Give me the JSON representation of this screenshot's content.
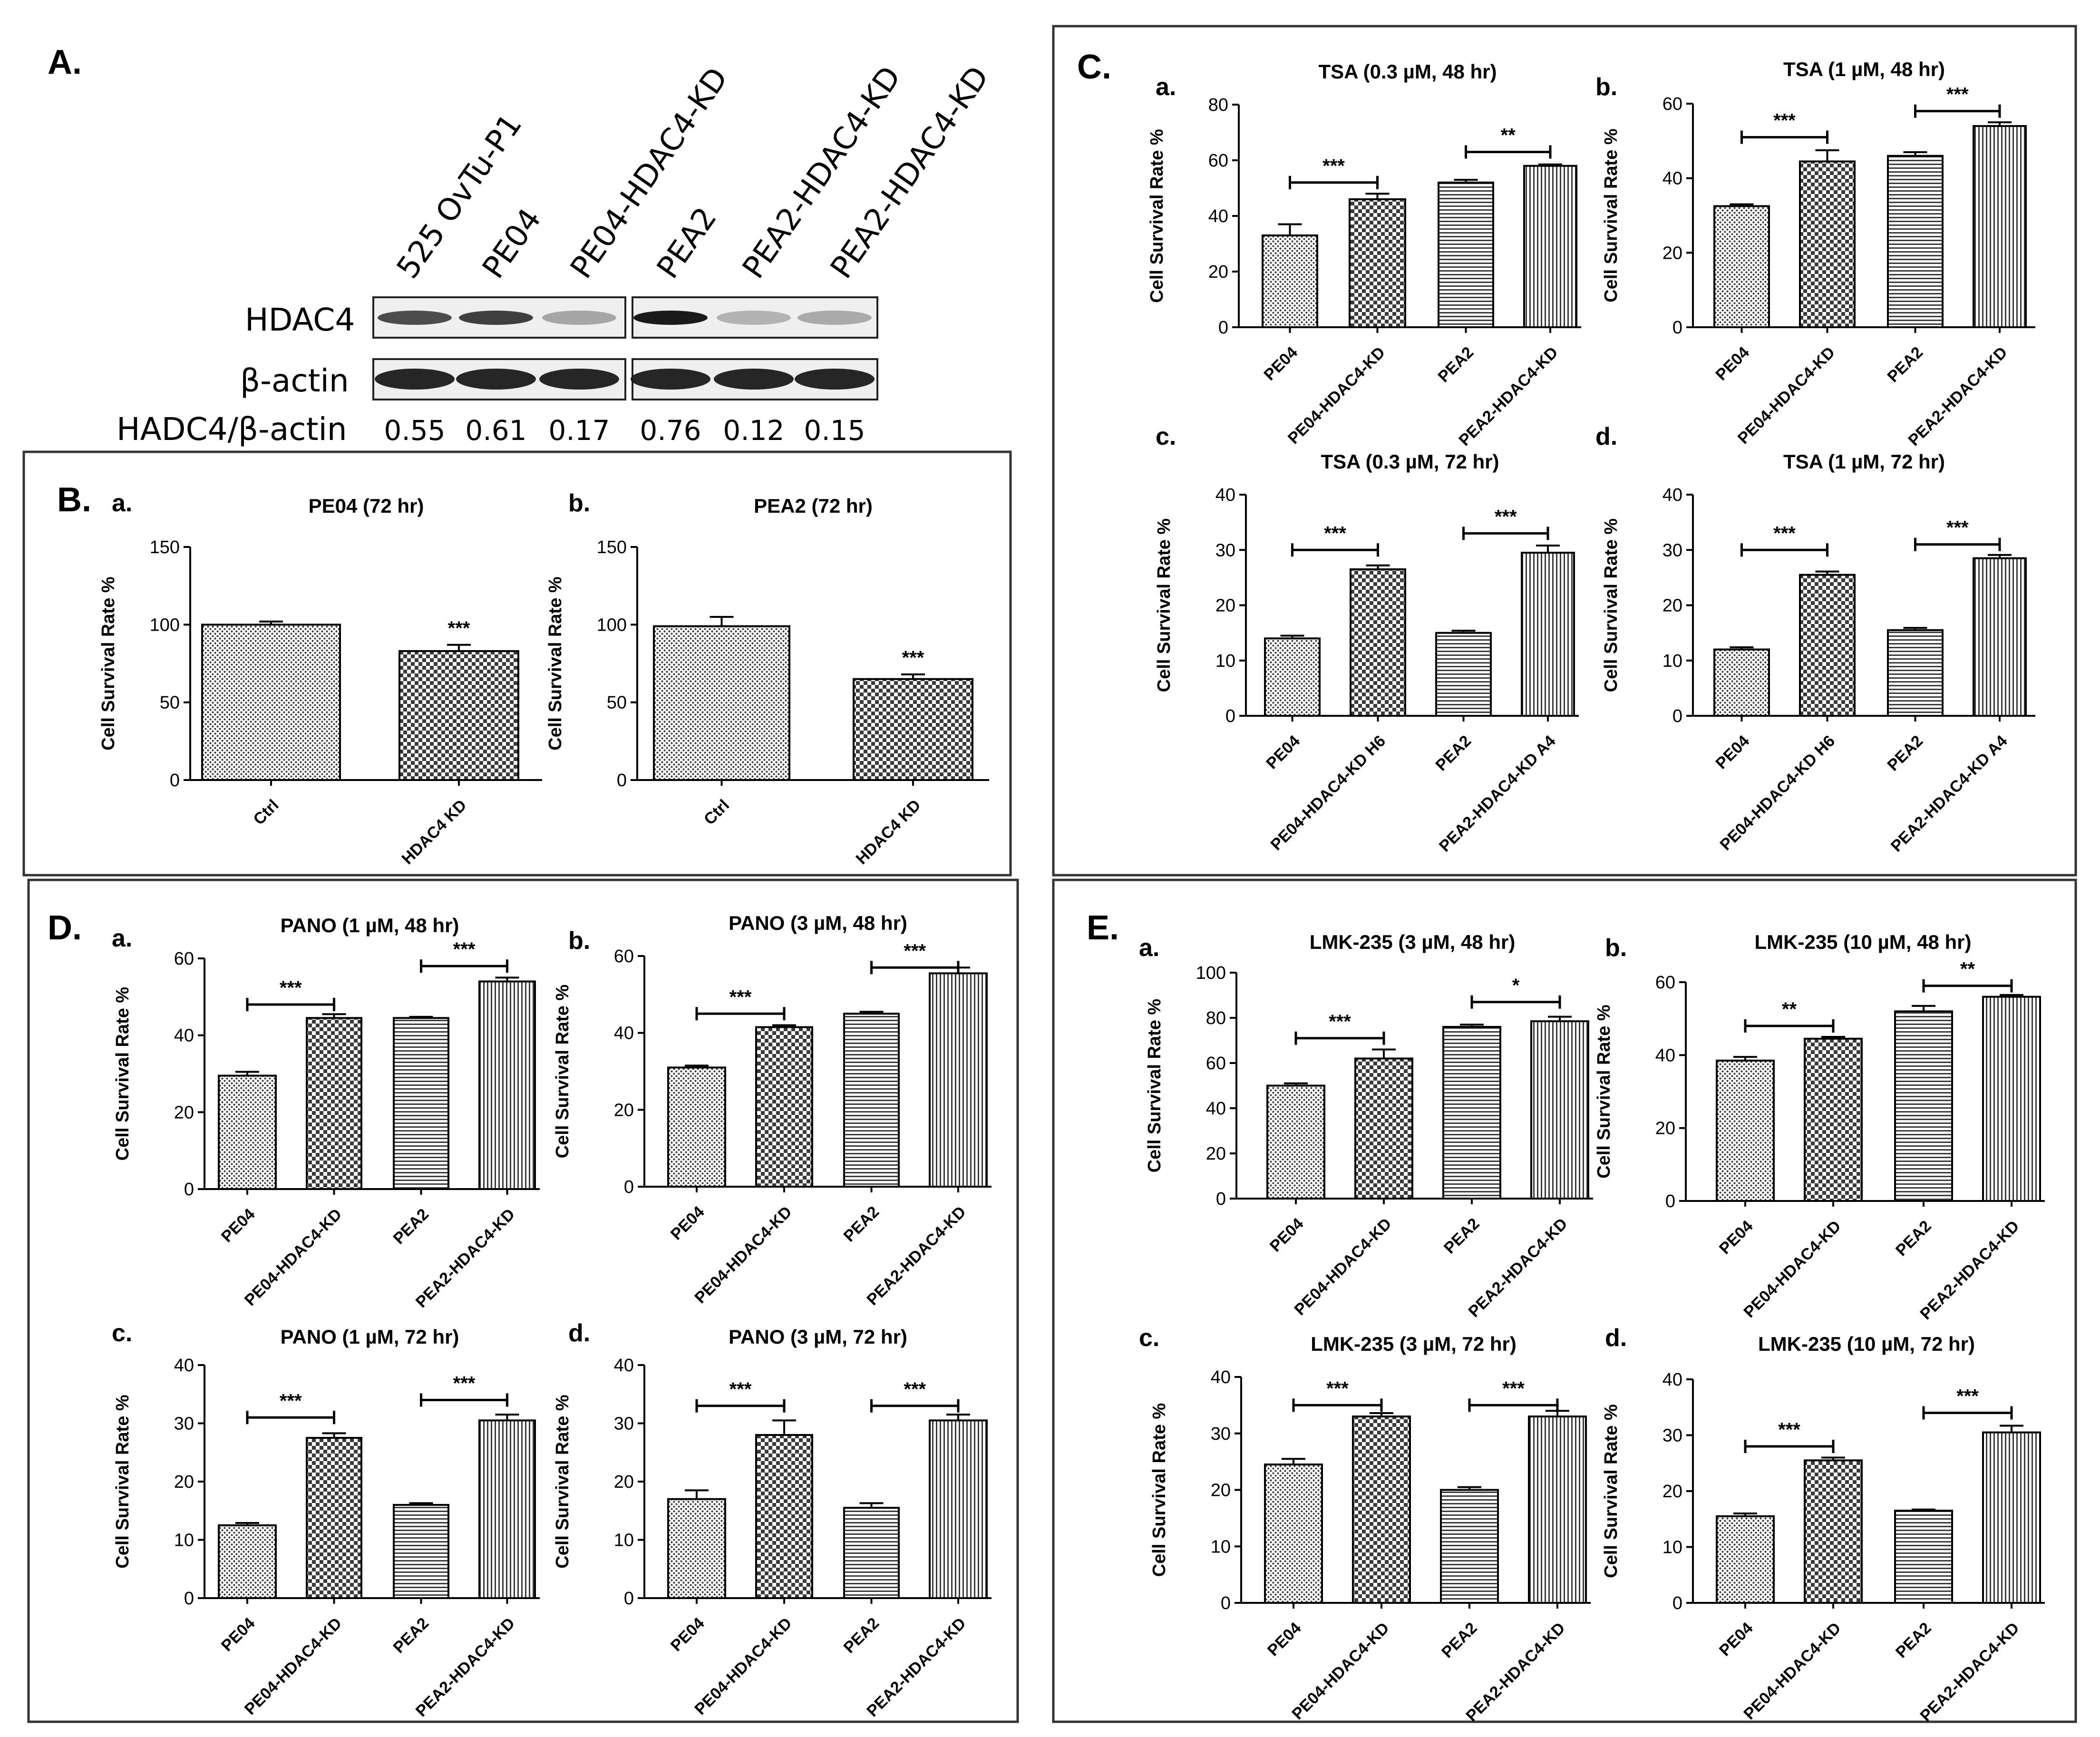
{
  "panel_letters": {
    "A": "A.",
    "B": "B.",
    "C": "C.",
    "D": "D.",
    "E": "E."
  },
  "western": {
    "lanes": [
      "525 OvTu-P1",
      "PE04",
      "PE04-HDAC4-KD",
      "PEA2",
      "PEA2-HDAC4-KD",
      "PEA2-HDAC4-KD"
    ],
    "row_hdac4": "HDAC4",
    "row_actin": "β-actin",
    "ratio_label": "HADC4/β-actin",
    "ratios": [
      "0.55",
      "0.61",
      "0.17",
      "0.76",
      "0.12",
      "0.15"
    ],
    "hdac4_band_intensity": [
      0.55,
      0.61,
      0.17,
      0.76,
      0.12,
      0.15
    ]
  },
  "colors": {
    "ink": "#000000",
    "frame": "#333333",
    "bar_dark": "#3a3a3a",
    "blot_band": "#1a1a1a",
    "blot_bg": "#efefef"
  },
  "common": {
    "ylabel": "Cell Survival Rate %",
    "sig1": "*",
    "sig2": "**",
    "sig3": "***"
  },
  "chart_data": [
    {
      "id": "Ba",
      "sub": "a.",
      "type": "bar",
      "title": "PE04 (72 hr)",
      "ylabel": "Cell Survival Rate %",
      "categories": [
        "Ctrl",
        "HDAC4 KD"
      ],
      "values": [
        100,
        83
      ],
      "errors": [
        2,
        4
      ],
      "ylim": [
        0,
        150
      ],
      "ticks": [
        0,
        50,
        100,
        150
      ],
      "patterns": [
        "dots",
        "check"
      ],
      "sig_above": [
        {
          "bar": 1,
          "text": "***"
        }
      ],
      "brackets": []
    },
    {
      "id": "Bb",
      "sub": "b.",
      "type": "bar",
      "title": "PEA2 (72 hr)",
      "ylabel": "Cell Survival Rate %",
      "categories": [
        "Ctrl",
        "HDAC4 KD"
      ],
      "values": [
        99,
        65
      ],
      "errors": [
        6,
        3
      ],
      "ylim": [
        0,
        150
      ],
      "ticks": [
        0,
        50,
        100,
        150
      ],
      "patterns": [
        "dots",
        "check"
      ],
      "sig_above": [
        {
          "bar": 1,
          "text": "***"
        }
      ],
      "brackets": []
    },
    {
      "id": "Ca",
      "sub": "a.",
      "type": "bar",
      "title": "TSA (0.3 µM, 48 hr)",
      "ylabel": "Cell Survival Rate %",
      "categories": [
        "PE04",
        "PE04-HDAC4-KD",
        "PEA2",
        "PEA2-HDAC4-KD"
      ],
      "values": [
        33,
        46,
        52,
        58
      ],
      "errors": [
        4,
        2,
        1,
        0.5
      ],
      "ylim": [
        0,
        80
      ],
      "ticks": [
        0,
        20,
        40,
        60,
        80
      ],
      "patterns": [
        "dots",
        "check",
        "hlines",
        "vlines"
      ],
      "brackets": [
        {
          "a": 0,
          "b": 1,
          "y": 52,
          "text": "***"
        },
        {
          "a": 2,
          "b": 3,
          "y": 63,
          "text": "**"
        }
      ]
    },
    {
      "id": "Cb",
      "sub": "b.",
      "type": "bar",
      "title": "TSA (1 µM, 48 hr)",
      "ylabel": "Cell Survival Rate %",
      "categories": [
        "PE04",
        "PE04-HDAC4-KD",
        "PEA2",
        "PEA2-HDAC4-KD"
      ],
      "values": [
        32.5,
        44.5,
        46,
        54
      ],
      "errors": [
        0.5,
        3,
        1,
        1
      ],
      "ylim": [
        0,
        60
      ],
      "ticks": [
        0,
        20,
        40,
        60
      ],
      "patterns": [
        "dots",
        "check",
        "hlines",
        "vlines"
      ],
      "brackets": [
        {
          "a": 0,
          "b": 1,
          "y": 51,
          "text": "***"
        },
        {
          "a": 2,
          "b": 3,
          "y": 58,
          "text": "***"
        }
      ]
    },
    {
      "id": "Cc",
      "sub": "c.",
      "type": "bar",
      "title": "TSA (0.3 µM, 72 hr)",
      "ylabel": "Cell Survival Rate %",
      "categories": [
        "PE04",
        "PE04-HDAC4-KD H6",
        "PEA2",
        "PEA2-HDAC4-KD A4"
      ],
      "values": [
        14,
        26.5,
        15,
        29.5
      ],
      "errors": [
        0.5,
        0.7,
        0.4,
        1.3
      ],
      "ylim": [
        0,
        40
      ],
      "ticks": [
        0,
        10,
        20,
        30,
        40
      ],
      "patterns": [
        "dots",
        "check",
        "hlines",
        "vlines"
      ],
      "brackets": [
        {
          "a": 0,
          "b": 1,
          "y": 30,
          "text": "***"
        },
        {
          "a": 2,
          "b": 3,
          "y": 33,
          "text": "***"
        }
      ]
    },
    {
      "id": "Cd",
      "sub": "d.",
      "type": "bar",
      "title": "TSA (1 µM, 72 hr)",
      "ylabel": "Cell Survival Rate %",
      "categories": [
        "PE04",
        "PE04-HDAC4-KD H6",
        "PEA2",
        "PEA2-HDAC4-KD A4"
      ],
      "values": [
        12,
        25.5,
        15.5,
        28.5
      ],
      "errors": [
        0.4,
        0.6,
        0.4,
        0.6
      ],
      "ylim": [
        0,
        40
      ],
      "ticks": [
        0,
        10,
        20,
        30,
        40
      ],
      "patterns": [
        "dots",
        "check",
        "hlines",
        "vlines"
      ],
      "brackets": [
        {
          "a": 0,
          "b": 1,
          "y": 30,
          "text": "***"
        },
        {
          "a": 2,
          "b": 3,
          "y": 31,
          "text": "***"
        }
      ]
    },
    {
      "id": "Da",
      "sub": "a.",
      "type": "bar",
      "title": "PANO (1 µM, 48 hr)",
      "ylabel": "Cell Survival Rate %",
      "categories": [
        "PE04",
        "PE04-HDAC4-KD",
        "PEA2",
        "PEA2-HDAC4-KD"
      ],
      "values": [
        29.5,
        44.5,
        44.5,
        54
      ],
      "errors": [
        1,
        1,
        0.3,
        1
      ],
      "ylim": [
        0,
        60
      ],
      "ticks": [
        0,
        20,
        40,
        60
      ],
      "patterns": [
        "dots",
        "check",
        "hlines",
        "vlines"
      ],
      "brackets": [
        {
          "a": 0,
          "b": 1,
          "y": 48,
          "text": "***"
        },
        {
          "a": 2,
          "b": 3,
          "y": 58,
          "text": "***"
        }
      ]
    },
    {
      "id": "Db",
      "sub": "b.",
      "type": "bar",
      "title": "PANO (3 µM, 48 hr)",
      "ylabel": "Cell Survival Rate %",
      "categories": [
        "PE04",
        "PE04-HDAC4-KD",
        "PEA2",
        "PEA2-HDAC4-KD"
      ],
      "values": [
        31,
        41.5,
        45,
        55.5
      ],
      "errors": [
        0.5,
        0.5,
        0.5,
        1.5
      ],
      "ylim": [
        0,
        60
      ],
      "ticks": [
        0,
        20,
        40,
        60
      ],
      "patterns": [
        "dots",
        "check",
        "hlines",
        "vlines"
      ],
      "brackets": [
        {
          "a": 0,
          "b": 1,
          "y": 45,
          "text": "***"
        },
        {
          "a": 2,
          "b": 3,
          "y": 57,
          "text": "***"
        }
      ]
    },
    {
      "id": "Dc",
      "sub": "c.",
      "type": "bar",
      "title": "PANO (1 µM, 72 hr)",
      "ylabel": "Cell Survival Rate %",
      "categories": [
        "PE04",
        "PE04-HDAC4-KD",
        "PEA2",
        "PEA2-HDAC4-KD"
      ],
      "values": [
        12.5,
        27.5,
        16,
        30.5
      ],
      "errors": [
        0.4,
        0.8,
        0.3,
        1
      ],
      "ylim": [
        0,
        40
      ],
      "ticks": [
        0,
        10,
        20,
        30,
        40
      ],
      "patterns": [
        "dots",
        "check",
        "hlines",
        "vlines"
      ],
      "brackets": [
        {
          "a": 0,
          "b": 1,
          "y": 31,
          "text": "***"
        },
        {
          "a": 2,
          "b": 3,
          "y": 34,
          "text": "***"
        }
      ]
    },
    {
      "id": "Dd",
      "sub": "d.",
      "type": "bar",
      "title": "PANO (3 µM, 72 hr)",
      "ylabel": "Cell Survival Rate %",
      "categories": [
        "PE04",
        "PE04-HDAC4-KD",
        "PEA2",
        "PEA2-HDAC4-KD"
      ],
      "values": [
        17,
        28,
        15.5,
        30.5
      ],
      "errors": [
        1.5,
        2.5,
        0.8,
        1
      ],
      "ylim": [
        0,
        40
      ],
      "ticks": [
        0,
        10,
        20,
        30,
        40
      ],
      "patterns": [
        "dots",
        "check",
        "hlines",
        "vlines"
      ],
      "brackets": [
        {
          "a": 0,
          "b": 1,
          "y": 33,
          "text": "***"
        },
        {
          "a": 2,
          "b": 3,
          "y": 33,
          "text": "***"
        }
      ]
    },
    {
      "id": "Ea",
      "sub": "a.",
      "type": "bar",
      "title": "LMK-235 (3 µM, 48 hr)",
      "ylabel": "Cell Survival Rate %",
      "categories": [
        "PE04",
        "PE04-HDAC4-KD",
        "PEA2",
        "PEA2-HDAC4-KD"
      ],
      "values": [
        50,
        62,
        76,
        78.5
      ],
      "errors": [
        1,
        4,
        1,
        2
      ],
      "ylim": [
        0,
        100
      ],
      "ticks": [
        0,
        20,
        40,
        60,
        80,
        100
      ],
      "patterns": [
        "dots",
        "check",
        "hlines",
        "vlines"
      ],
      "brackets": [
        {
          "a": 0,
          "b": 1,
          "y": 71,
          "text": "***"
        },
        {
          "a": 2,
          "b": 3,
          "y": 87,
          "text": "*"
        }
      ]
    },
    {
      "id": "Eb",
      "sub": "b.",
      "type": "bar",
      "title": "LMK-235 (10 µM, 48 hr)",
      "ylabel": "Cell Survival Rate %",
      "categories": [
        "PE04",
        "PE04-HDAC4-KD",
        "PEA2",
        "PEA2-HDAC4-KD"
      ],
      "values": [
        38.5,
        44.5,
        52,
        56
      ],
      "errors": [
        1,
        0.5,
        1.5,
        0.5
      ],
      "ylim": [
        0,
        60
      ],
      "ticks": [
        0,
        20,
        40,
        60
      ],
      "patterns": [
        "dots",
        "check",
        "hlines",
        "vlines"
      ],
      "brackets": [
        {
          "a": 0,
          "b": 1,
          "y": 48,
          "text": "**"
        },
        {
          "a": 2,
          "b": 3,
          "y": 59,
          "text": "**"
        }
      ]
    },
    {
      "id": "Ec",
      "sub": "c.",
      "type": "bar",
      "title": "LMK-235 (3 µM, 72 hr)",
      "ylabel": "Cell Survival Rate %",
      "categories": [
        "PE04",
        "PE04-HDAC4-KD",
        "PEA2",
        "PEA2-HDAC4-KD"
      ],
      "values": [
        24.5,
        33,
        20,
        33
      ],
      "errors": [
        1,
        0.6,
        0.5,
        1
      ],
      "ylim": [
        0,
        40
      ],
      "ticks": [
        0,
        10,
        20,
        30,
        40
      ],
      "patterns": [
        "dots",
        "check",
        "hlines",
        "vlines"
      ],
      "brackets": [
        {
          "a": 0,
          "b": 1,
          "y": 35,
          "text": "***"
        },
        {
          "a": 2,
          "b": 3,
          "y": 35,
          "text": "***"
        }
      ]
    },
    {
      "id": "Ed",
      "sub": "d.",
      "type": "bar",
      "title": "LMK-235 (10 µM, 72 hr)",
      "ylabel": "Cell Survival Rate %",
      "categories": [
        "PE04",
        "PE04-HDAC4-KD",
        "PEA2",
        "PEA2-HDAC4-KD"
      ],
      "values": [
        15.5,
        25.5,
        16.5,
        30.5
      ],
      "errors": [
        0.5,
        0.5,
        0.2,
        1.2
      ],
      "ylim": [
        0,
        40
      ],
      "ticks": [
        0,
        10,
        20,
        30,
        40
      ],
      "patterns": [
        "dots",
        "check",
        "hlines",
        "vlines"
      ],
      "brackets": [
        {
          "a": 0,
          "b": 1,
          "y": 28,
          "text": "***"
        },
        {
          "a": 2,
          "b": 3,
          "y": 34,
          "text": "***"
        }
      ]
    }
  ]
}
